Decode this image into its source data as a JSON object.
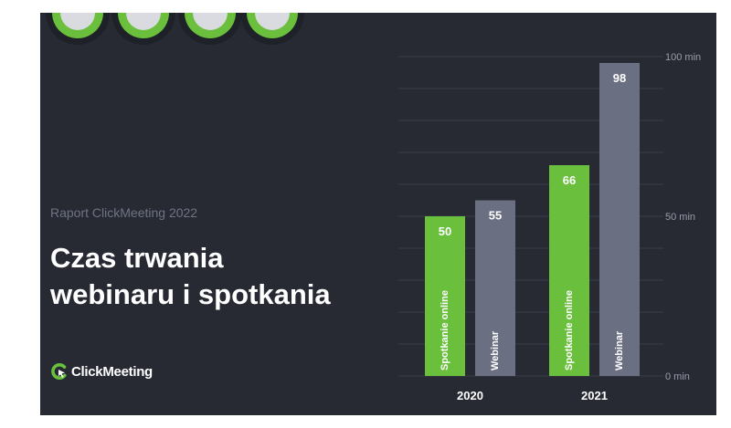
{
  "header": {
    "report_label": "Raport ClickMeeting 2022",
    "title_line1": "Czas trwania",
    "title_line2": "webinaru i spotkania"
  },
  "brand": {
    "name": "ClickMeeting",
    "logo_icon": "clickmeeting-logo-icon"
  },
  "colors": {
    "background": "#272a33",
    "spotkanie": "#6abf3c",
    "webinar": "#6b6f82",
    "gridline": "#3a3e49",
    "axis_text": "#9a9eab"
  },
  "chart_data": {
    "type": "bar",
    "categories": [
      "2020",
      "2021"
    ],
    "series": [
      {
        "name": "Spotkanie online",
        "values": [
          50,
          66
        ]
      },
      {
        "name": "Webinar",
        "values": [
          55,
          98
        ]
      }
    ],
    "ylim": [
      0,
      100
    ],
    "yticks": [
      0,
      50,
      100
    ],
    "ytick_labels": [
      "0 min",
      "50 min",
      "100 min"
    ],
    "grid": true
  }
}
